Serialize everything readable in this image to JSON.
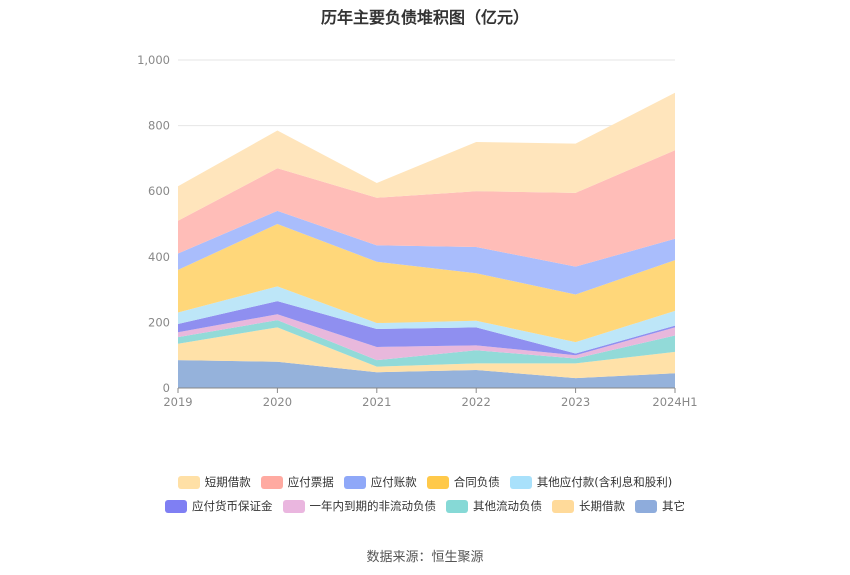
{
  "source": "数据来源：恒生聚源",
  "chart_data": {
    "type": "area",
    "stacked": true,
    "title": "历年主要负债堆积图（亿元）",
    "categories": [
      "2019",
      "2020",
      "2021",
      "2022",
      "2023",
      "2024H1"
    ],
    "ylim": [
      0,
      1000
    ],
    "yticks": [
      0,
      200,
      400,
      600,
      800,
      1000
    ],
    "ytick_labels": [
      "0",
      "200",
      "400",
      "600",
      "800",
      "1,000"
    ],
    "grid": true,
    "legend_position": "bottom",
    "series": [
      {
        "name": "其它",
        "color": "#95b2db",
        "values": [
          85,
          80,
          48,
          55,
          30,
          45
        ]
      },
      {
        "name": "长期借款",
        "color": "#ffe1a8",
        "values": [
          50,
          105,
          17,
          20,
          45,
          65
        ]
      },
      {
        "name": "其他流动负债",
        "color": "#92dad8",
        "values": [
          20,
          22,
          20,
          40,
          15,
          50
        ]
      },
      {
        "name": "一年内到期的非流动负债",
        "color": "#e8b8dc",
        "values": [
          15,
          18,
          40,
          15,
          10,
          25
        ]
      },
      {
        "name": "应付货币保证金",
        "color": "#8f8ff0",
        "values": [
          25,
          40,
          55,
          55,
          5,
          5
        ]
      },
      {
        "name": "其他应付款(含利息和股利)",
        "color": "#bde6f8",
        "values": [
          35,
          45,
          18,
          20,
          35,
          45
        ]
      },
      {
        "name": "合同负债",
        "color": "#ffd77a",
        "values": [
          130,
          190,
          187,
          145,
          145,
          155
        ]
      },
      {
        "name": "应付账款",
        "color": "#a9bdfc",
        "values": [
          50,
          40,
          50,
          80,
          85,
          65
        ]
      },
      {
        "name": "应付票据",
        "color": "#ffbdb8",
        "values": [
          100,
          130,
          145,
          170,
          225,
          270
        ]
      },
      {
        "name": "短期借款",
        "color": "#ffe5bc",
        "values": [
          105,
          115,
          45,
          150,
          150,
          175
        ]
      }
    ]
  },
  "legend_rows": [
    [
      {
        "name": "短期借款",
        "color": "#ffe0a6"
      },
      {
        "name": "应付票据",
        "color": "#ffaaa1"
      },
      {
        "name": "应付账款",
        "color": "#8fa8f8"
      },
      {
        "name": "合同负债",
        "color": "#ffc94a"
      },
      {
        "name": "其他应付款(含利息和股利)",
        "color": "#a9e1fb"
      }
    ],
    [
      {
        "name": "应付货币保证金",
        "color": "#7f7ff3"
      },
      {
        "name": "一年内到期的非流动负债",
        "color": "#eab6df"
      },
      {
        "name": "其他流动负债",
        "color": "#86d9d6"
      },
      {
        "name": "长期借款",
        "color": "#ffda9a"
      },
      {
        "name": "其它",
        "color": "#8eacdc"
      }
    ]
  ]
}
